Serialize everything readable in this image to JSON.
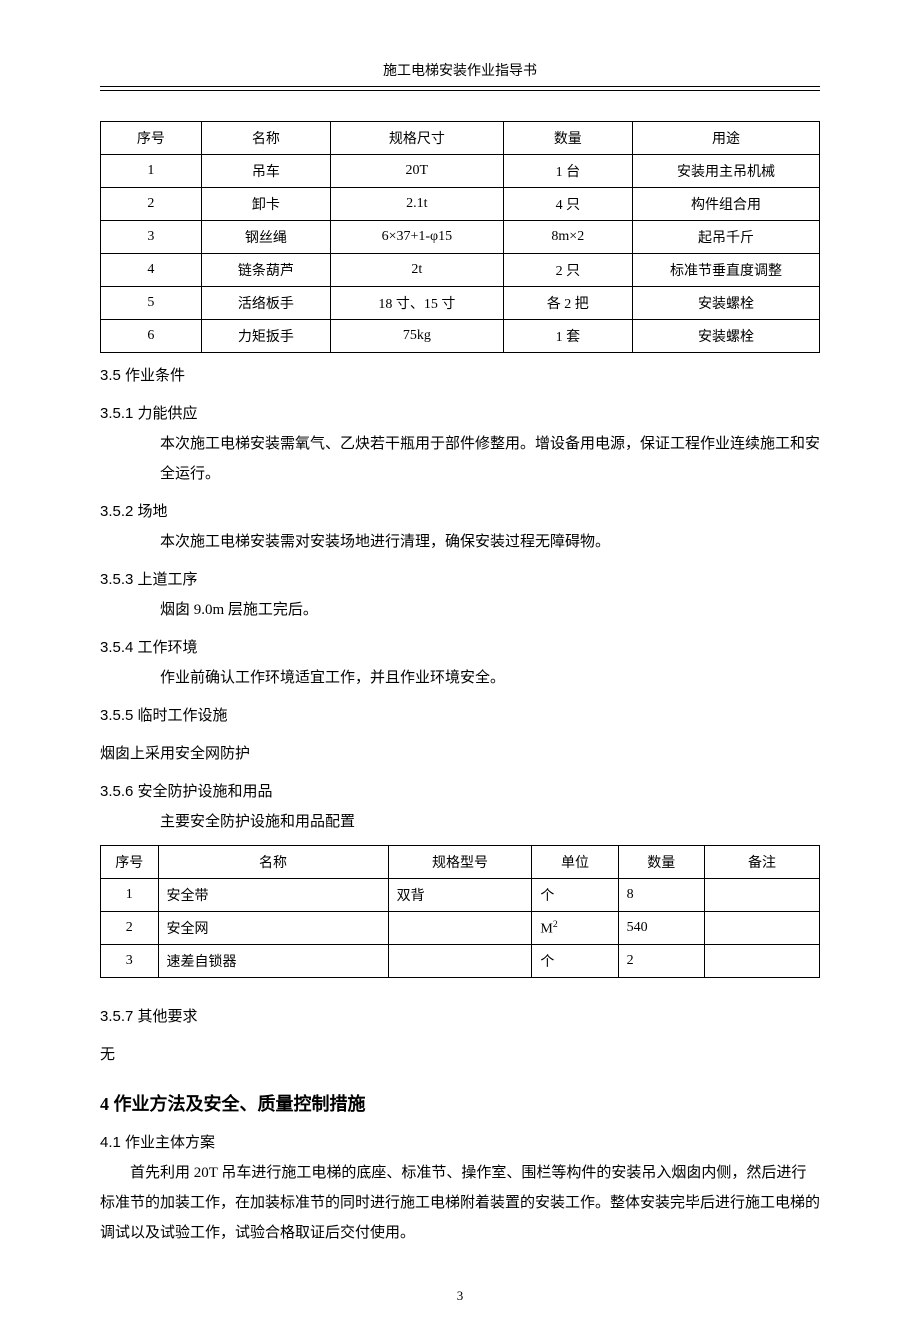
{
  "header_title": "施工电梯安装作业指导书",
  "page_number": "3",
  "table1": {
    "headers": [
      "序号",
      "名称",
      "规格尺寸",
      "数量",
      "用途"
    ],
    "rows": [
      [
        "1",
        "吊车",
        "20T",
        "1 台",
        "安装用主吊机械"
      ],
      [
        "2",
        "卸卡",
        "2.1t",
        "4 只",
        "构件组合用"
      ],
      [
        "3",
        "钢丝绳",
        "6×37+1-φ15",
        "8m×2",
        "起吊千斤"
      ],
      [
        "4",
        "链条葫芦",
        "2t",
        "2 只",
        "标准节垂直度调整"
      ],
      [
        "5",
        "活络板手",
        "18 寸、15 寸",
        "各 2 把",
        "安装螺栓"
      ],
      [
        "6",
        "力矩扳手",
        "75kg",
        "1 套",
        "安装螺栓"
      ]
    ]
  },
  "s35": "3.5 作业条件",
  "s351": "3.5.1 力能供应",
  "s351_body": "本次施工电梯安装需氧气、乙炔若干瓶用于部件修整用。增设备用电源，保证工程作业连续施工和安全运行。",
  "s352": "3.5.2 场地",
  "s352_body": "本次施工电梯安装需对安装场地进行清理，确保安装过程无障碍物。",
  "s353": "3.5.3 上道工序",
  "s353_body": "烟囱 9.0m 层施工完后。",
  "s354": "3.5.4 工作环境",
  "s354_body": "作业前确认工作环境适宜工作，并且作业环境安全。",
  "s355": "3.5.5 临时工作设施",
  "s355_body": "烟囱上采用安全网防护",
  "s356": "3.5.6 安全防护设施和用品",
  "s356_sub": "主要安全防护设施和用品配置",
  "table2": {
    "headers": [
      "序号",
      "名称",
      "规格型号",
      "单位",
      "数量",
      "备注"
    ],
    "rows": [
      [
        "1",
        "安全带",
        "双背",
        "个",
        "8",
        ""
      ],
      [
        "2",
        "安全网",
        "",
        "M²",
        "540",
        ""
      ],
      [
        "3",
        "速差自锁器",
        "",
        "个",
        "2",
        ""
      ]
    ]
  },
  "s357": "3.5.7 其他要求",
  "s357_body": "无",
  "h4": "4  作业方法及安全、质量控制措施",
  "s41": "4.1 作业主体方案",
  "s41_body": "首先利用 20T 吊车进行施工电梯的底座、标准节、操作室、围栏等构件的安装吊入烟囱内侧，然后进行标准节的加装工作，在加装标准节的同时进行施工电梯附着装置的安装工作。整体安装完毕后进行施工电梯的调试以及试验工作，试验合格取证后交付使用。"
}
